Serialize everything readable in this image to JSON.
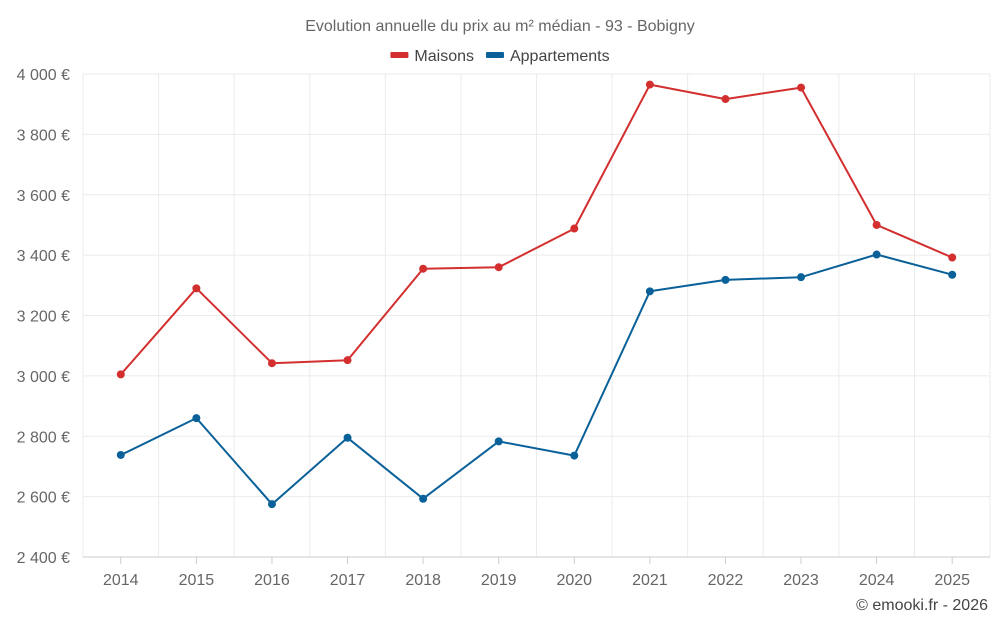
{
  "chart_data": {
    "type": "line",
    "title": "Evolution annuelle du prix au m² médian - 93 - Bobigny",
    "categories": [
      "2014",
      "2015",
      "2016",
      "2017",
      "2018",
      "2019",
      "2020",
      "2021",
      "2022",
      "2023",
      "2024",
      "2025"
    ],
    "series": [
      {
        "name": "Maisons",
        "color": "#d32f2f",
        "values": [
          3005,
          3290,
          3042,
          3052,
          3355,
          3360,
          3488,
          3965,
          3917,
          3955,
          3500,
          3392
        ]
      },
      {
        "name": "Appartements",
        "color": "#0a6199",
        "values": [
          2738,
          2860,
          2575,
          2795,
          2593,
          2783,
          2736,
          3280,
          3318,
          3327,
          3402,
          3335
        ]
      }
    ],
    "ylim": [
      2400,
      4000
    ],
    "yticks": [
      2400,
      2600,
      2800,
      3000,
      3200,
      3400,
      3600,
      3800,
      4000
    ],
    "ytick_labels": [
      "2 400 €",
      "2 600 €",
      "2 800 €",
      "3 000 €",
      "3 200 €",
      "3 400 €",
      "3 600 €",
      "3 800 €",
      "4 000 €"
    ],
    "xlabel": "",
    "ylabel": "",
    "grid": true,
    "legend_position": "top-center"
  },
  "credit": "© emooki.fr - 2026"
}
